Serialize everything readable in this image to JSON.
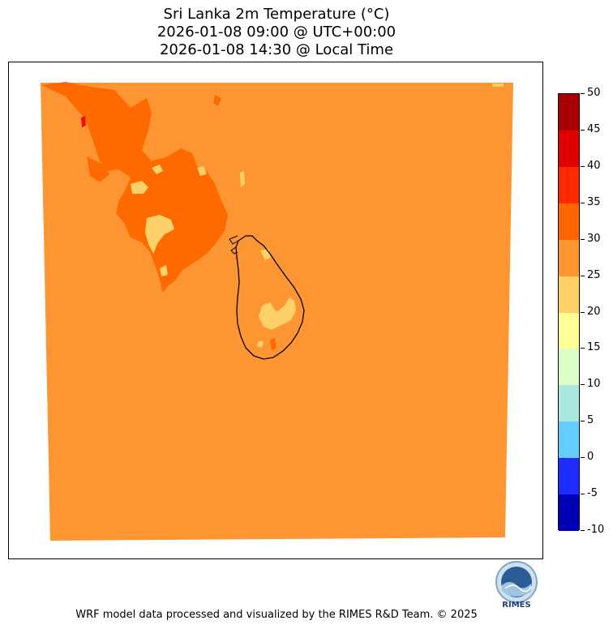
{
  "title": {
    "line1": "Sri Lanka 2m Temperature (°C)",
    "line2": "2026-01-08 09:00 @ UTC+00:00",
    "line3": "2026-01-08 14:30 @ Local Time"
  },
  "colorbar": {
    "tick_labels": [
      "50",
      "45",
      "40",
      "35",
      "30",
      "25",
      "20",
      "15",
      "10",
      "5",
      "0",
      "-5",
      "-10"
    ],
    "colors_top_to_bottom": [
      "#a80000",
      "#e10000",
      "#ff2a00",
      "#ff6600",
      "#fe952f",
      "#fed066",
      "#ffff96",
      "#dcffc8",
      "#a8e8e0",
      "#64cdff",
      "#1e2cff",
      "#0000b4"
    ]
  },
  "map": {
    "dominant_band": "25-30",
    "dominant_color": "#fd9632",
    "warm_patch_color": "#ff6a00",
    "cool_patch_color": "#fdd068",
    "hot_spot_color": "#e8140c",
    "coastline_color": "#000000"
  },
  "logo": {
    "text": "RIMES"
  },
  "footer": {
    "text": "WRF model data processed and visualized by the RIMES R&D Team. © 2025"
  }
}
